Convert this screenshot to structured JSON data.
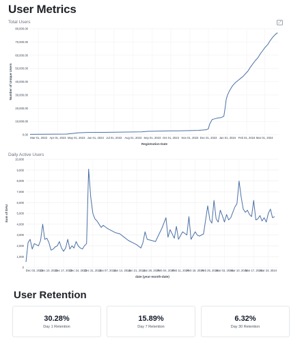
{
  "page": {
    "title": "User Metrics"
  },
  "total_users": {
    "section_label": "Total Users",
    "expand_icon": "expand-icon"
  },
  "daily_active": {
    "section_label": "Daily Active Users"
  },
  "retention": {
    "title": "User Retention",
    "cards": [
      {
        "value": "30.28%",
        "label": "Day 1 Retention"
      },
      {
        "value": "15.89%",
        "label": "Day 7 Retention"
      },
      {
        "value": "6.32%",
        "label": "Day 30 Retention"
      }
    ]
  },
  "chart_data": [
    {
      "type": "line",
      "title": "Total Users",
      "xlabel": "Registration Date",
      "ylabel": "Number of Unique Users",
      "ylim": [
        0,
        80000
      ],
      "yticks": [
        0,
        10000,
        20000,
        30000,
        40000,
        50000,
        60000,
        70000,
        80000
      ],
      "ytick_labels": [
        "0.00",
        "10,000.00",
        "20,000.00",
        "30,000.00",
        "40,000.00",
        "50,000.00",
        "60,000.00",
        "70,000.00",
        "80,000.00"
      ],
      "xlim": [
        "2023-02-15",
        "2024-03-24"
      ],
      "xticks": [
        "2023-03-01",
        "2023-04-01",
        "2023-05-01",
        "2023-06-01",
        "2023-07-01",
        "2023-08-01",
        "2023-09-01",
        "2023-10-01",
        "2023-11-01",
        "2023-12-01",
        "2024-01-01",
        "2024-02-01",
        "2024-03-01"
      ],
      "xtick_labels": [
        "Mar 01, 2023",
        "Apr 01, 2023",
        "May 01, 2023",
        "Jun 01, 2023",
        "Jul 01, 2023",
        "Aug 01, 2023",
        "Sep 01, 2023",
        "Oct 01, 2023",
        "Nov 01, 2023",
        "Dec 01, 2023",
        "Jan 01, 2024",
        "Feb 01, 2024",
        "Mar 01, 2024"
      ],
      "grid": true,
      "color": "#4a6fa5",
      "series": [
        {
          "x": [
            "2023-02-15",
            "2023-04-15",
            "2023-05-05",
            "2023-05-15",
            "2023-06-15",
            "2023-07-15",
            "2023-08-15",
            "2023-08-25",
            "2023-09-15",
            "2023-10-15",
            "2023-11-15",
            "2023-11-28",
            "2023-12-01",
            "2023-12-03",
            "2023-12-07",
            "2023-12-15",
            "2023-12-22",
            "2023-12-26",
            "2023-12-28",
            "2023-12-30",
            "2024-01-01",
            "2024-01-04",
            "2024-01-07",
            "2024-01-10",
            "2024-01-14",
            "2024-01-18",
            "2024-01-22",
            "2024-01-26",
            "2024-01-30",
            "2024-02-03",
            "2024-02-07",
            "2024-02-11",
            "2024-02-15",
            "2024-02-19",
            "2024-02-23",
            "2024-02-27",
            "2024-03-02",
            "2024-03-06",
            "2024-03-10",
            "2024-03-14",
            "2024-03-18",
            "2024-03-22"
          ],
          "y": [
            300,
            500,
            1500,
            1700,
            1800,
            2000,
            2200,
            2600,
            2800,
            3000,
            3300,
            3800,
            4500,
            8000,
            11500,
            12500,
            13000,
            14000,
            20000,
            27000,
            30000,
            33000,
            35500,
            37500,
            39500,
            41000,
            42500,
            44000,
            46000,
            48000,
            51000,
            53500,
            56000,
            58000,
            61000,
            63500,
            66000,
            68000,
            71000,
            73500,
            75500,
            77000
          ]
        }
      ]
    },
    {
      "type": "line",
      "title": "Daily Active Users",
      "xlabel": "date (year-month-date)",
      "ylabel": "Sum of DAU",
      "ylim": [
        0,
        10000
      ],
      "yticks": [
        0,
        1000,
        2000,
        3000,
        4000,
        5000,
        6000,
        7000,
        8000,
        9000,
        10000
      ],
      "ytick_labels": [
        "0",
        "1,000",
        "2,000",
        "3,000",
        "4,000",
        "5,000",
        "6,000",
        "7,000",
        "8,000",
        "9,000",
        "10,000"
      ],
      "xlim": [
        "2023-11-29",
        "2024-03-29"
      ],
      "xticks": [
        "2023-12-03",
        "2023-12-10",
        "2023-12-17",
        "2023-12-24",
        "2023-12-31",
        "2024-01-07",
        "2024-01-14",
        "2024-01-21",
        "2024-01-28",
        "2024-02-04",
        "2024-02-11",
        "2024-02-18",
        "2024-02-25",
        "2024-03-03",
        "2024-03-10",
        "2024-03-17",
        "2024-03-24"
      ],
      "xtick_labels": [
        "Dec 03, 2023",
        "Dec 10, 2023",
        "Dec 17, 2023",
        "Dec 24, 2023",
        "Dec 31, 2023",
        "Jan 07, 2024",
        "Jan 14, 2024",
        "Jan 21, 2024",
        "Jan 28, 2024",
        "Feb 04, 2024",
        "Feb 11, 2024",
        "Feb 18, 2024",
        "Feb 25, 2024",
        "Mar 03, 2024",
        "Mar 10, 2024",
        "Mar 17, 2024",
        "Mar 24, 2024"
      ],
      "grid": true,
      "color": "#4a6fa5",
      "series": [
        {
          "x": [
            "2023-11-29",
            "2023-11-30",
            "2023-12-01",
            "2023-12-02",
            "2023-12-03",
            "2023-12-04",
            "2023-12-05",
            "2023-12-06",
            "2023-12-07",
            "2023-12-08",
            "2023-12-09",
            "2023-12-10",
            "2023-12-11",
            "2023-12-12",
            "2023-12-13",
            "2023-12-14",
            "2023-12-15",
            "2023-12-16",
            "2023-12-17",
            "2023-12-18",
            "2023-12-19",
            "2023-12-20",
            "2023-12-21",
            "2023-12-22",
            "2023-12-23",
            "2023-12-24",
            "2023-12-25",
            "2023-12-26",
            "2023-12-27",
            "2023-12-28",
            "2023-12-29",
            "2023-12-30",
            "2023-12-31",
            "2024-01-01",
            "2024-01-02",
            "2024-01-03",
            "2024-01-04",
            "2024-01-05",
            "2024-01-07",
            "2024-01-09",
            "2024-01-11",
            "2024-01-13",
            "2024-01-15",
            "2024-01-17",
            "2024-01-19",
            "2024-01-21",
            "2024-01-23",
            "2024-01-24",
            "2024-01-25",
            "2024-01-26",
            "2024-01-28",
            "2024-01-30",
            "2024-02-01",
            "2024-02-02",
            "2024-02-04",
            "2024-02-05",
            "2024-02-06",
            "2024-02-08",
            "2024-02-09",
            "2024-02-10",
            "2024-02-12",
            "2024-02-14",
            "2024-02-15",
            "2024-02-16",
            "2024-02-18",
            "2024-02-19",
            "2024-02-20",
            "2024-02-22",
            "2024-02-24",
            "2024-02-25",
            "2024-02-26",
            "2024-02-27",
            "2024-02-28",
            "2024-02-29",
            "2024-03-01",
            "2024-03-02",
            "2024-03-03",
            "2024-03-04",
            "2024-03-05",
            "2024-03-06",
            "2024-03-07",
            "2024-03-08",
            "2024-03-09",
            "2024-03-10",
            "2024-03-11",
            "2024-03-12",
            "2024-03-13",
            "2024-03-14",
            "2024-03-15",
            "2024-03-16",
            "2024-03-17",
            "2024-03-18",
            "2024-03-19",
            "2024-03-20",
            "2024-03-21",
            "2024-03-22",
            "2024-03-23",
            "2024-03-24",
            "2024-03-25",
            "2024-03-26",
            "2024-03-27"
          ],
          "y": [
            500,
            2300,
            2600,
            1700,
            2200,
            2100,
            2000,
            2500,
            4000,
            2600,
            2700,
            2300,
            1600,
            1700,
            1900,
            2000,
            2400,
            1800,
            1500,
            1800,
            2600,
            1700,
            2000,
            1800,
            2400,
            2000,
            1800,
            1700,
            2000,
            2200,
            9100,
            6500,
            5000,
            4500,
            4300,
            4000,
            3700,
            3900,
            3600,
            3400,
            3200,
            3100,
            2800,
            2500,
            2300,
            2100,
            1800,
            2300,
            3300,
            2600,
            2500,
            2400,
            3200,
            3600,
            4600,
            2800,
            3500,
            2700,
            3800,
            2600,
            3300,
            3000,
            4700,
            2600,
            3300,
            3000,
            2900,
            3100,
            5700,
            4400,
            4100,
            6200,
            4500,
            4200,
            5300,
            4800,
            4200,
            4900,
            4400,
            4600,
            5100,
            5600,
            5900,
            8000,
            6500,
            5400,
            5100,
            5300,
            4900,
            4700,
            6200,
            4400,
            4500,
            4800,
            4300,
            4600,
            4200,
            5000,
            5400,
            4600,
            4700
          ]
        }
      ]
    }
  ]
}
